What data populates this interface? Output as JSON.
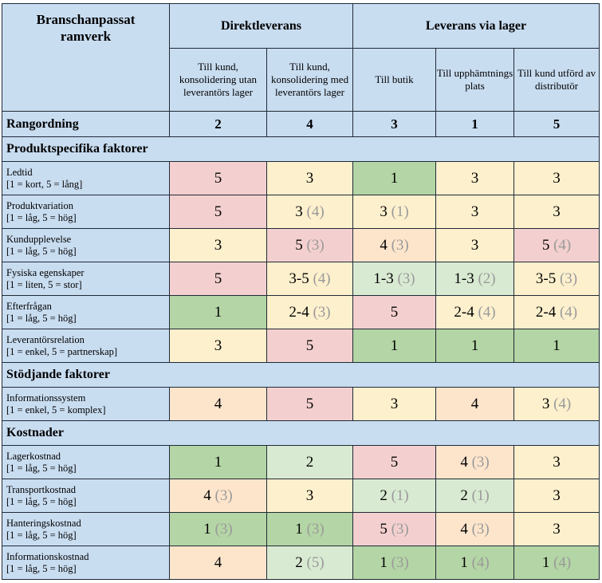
{
  "header": {
    "title": "Branschanpassat ramverk",
    "groups": [
      "Direktleverans",
      "Leverans via lager"
    ],
    "subheaders": [
      "Till kund, konsolidering utan leverantörs lager",
      "Till kund, konsolidering med leverantörs lager",
      "Till butik",
      "Till upphämtnings plats",
      "Till kund utförd av distributör"
    ]
  },
  "ranking": {
    "label": "Rangordning",
    "values": [
      "2",
      "4",
      "3",
      "1",
      "5"
    ]
  },
  "sections": [
    {
      "title": "Produktspecifika faktorer",
      "rows": [
        {
          "name": "Ledtid",
          "scale": "[1 = kort, 5 = lång]",
          "cells": [
            {
              "v": "5",
              "c": "red"
            },
            {
              "v": "3",
              "c": "yel"
            },
            {
              "v": "1",
              "c": "gD"
            },
            {
              "v": "3",
              "c": "yel"
            },
            {
              "v": "3",
              "c": "yel"
            }
          ]
        },
        {
          "name": "Produktvariation",
          "scale": "[1 = låg, 5 = hög]",
          "cells": [
            {
              "v": "5",
              "c": "red"
            },
            {
              "v": "3",
              "a": "(4)",
              "c": "yel"
            },
            {
              "v": "3",
              "a": "(1)",
              "c": "yel"
            },
            {
              "v": "3",
              "c": "yel"
            },
            {
              "v": "3",
              "c": "yel"
            }
          ]
        },
        {
          "name": "Kundupplevelse",
          "scale": "[1 = låg, 5 = hög]",
          "cells": [
            {
              "v": "3",
              "c": "yel"
            },
            {
              "v": "5",
              "a": "(3)",
              "c": "red"
            },
            {
              "v": "4",
              "a": "(3)",
              "c": "pch"
            },
            {
              "v": "3",
              "c": "yel"
            },
            {
              "v": "5",
              "a": "(4)",
              "c": "red"
            }
          ]
        },
        {
          "name": "Fysiska egenskaper",
          "scale": "[1 = liten, 5 = stor]",
          "cells": [
            {
              "v": "5",
              "c": "red"
            },
            {
              "v": "3-5",
              "a": "(4)",
              "c": "yel"
            },
            {
              "v": "1-3",
              "a": "(3)",
              "c": "gL"
            },
            {
              "v": "1-3",
              "a": "(2)",
              "c": "gL"
            },
            {
              "v": "3-5",
              "a": "(3)",
              "c": "yel"
            }
          ]
        },
        {
          "name": "Efterfrågan",
          "scale": "[1 = låg, 5 = hög]",
          "cells": [
            {
              "v": "1",
              "c": "gD"
            },
            {
              "v": "2-4",
              "a": "(3)",
              "c": "yel"
            },
            {
              "v": "5",
              "c": "red"
            },
            {
              "v": "2-4",
              "a": "(4)",
              "c": "yel"
            },
            {
              "v": "2-4",
              "a": "(4)",
              "c": "yel"
            }
          ]
        },
        {
          "name": "Leverantörsrelation",
          "scale": "[1 = enkel, 5 = partnerskap]",
          "cells": [
            {
              "v": "3",
              "c": "yel"
            },
            {
              "v": "5",
              "c": "red"
            },
            {
              "v": "1",
              "c": "gD"
            },
            {
              "v": "1",
              "c": "gD"
            },
            {
              "v": "1",
              "c": "gD"
            }
          ]
        }
      ]
    },
    {
      "title": "Stödjande faktorer",
      "rows": [
        {
          "name": "Informationssystem",
          "scale": "[1 = enkel, 5 = komplex]",
          "cells": [
            {
              "v": "4",
              "c": "pch"
            },
            {
              "v": "5",
              "c": "red"
            },
            {
              "v": "3",
              "c": "yel"
            },
            {
              "v": "4",
              "c": "pch"
            },
            {
              "v": "3",
              "a": "(4)",
              "c": "yel"
            }
          ]
        }
      ]
    },
    {
      "title": "Kostnader",
      "rows": [
        {
          "name": "Lagerkostnad",
          "scale": "[1 = låg, 5 = hög]",
          "cells": [
            {
              "v": "1",
              "c": "gD"
            },
            {
              "v": "2",
              "c": "gL"
            },
            {
              "v": "5",
              "c": "red"
            },
            {
              "v": "4",
              "a": "(3)",
              "c": "pch"
            },
            {
              "v": "3",
              "c": "yel"
            }
          ]
        },
        {
          "name": "Transportkostnad",
          "scale": "[1 = låg, 5 = hög]",
          "cells": [
            {
              "v": "4",
              "a": "(3)",
              "c": "pch"
            },
            {
              "v": "3",
              "c": "yel"
            },
            {
              "v": "2",
              "a": "(1)",
              "c": "gL"
            },
            {
              "v": "2",
              "a": "(1)",
              "c": "gL"
            },
            {
              "v": "3",
              "c": "yel"
            }
          ]
        },
        {
          "name": "Hanteringskostnad",
          "scale": "[1 = låg, 5 = hög]",
          "cells": [
            {
              "v": "1",
              "a": "(3)",
              "c": "gD"
            },
            {
              "v": "1",
              "a": "(3)",
              "c": "gD"
            },
            {
              "v": "5",
              "a": "(3)",
              "c": "red"
            },
            {
              "v": "4",
              "a": "(3)",
              "c": "pch"
            },
            {
              "v": "3",
              "c": "yel"
            }
          ]
        },
        {
          "name": "Informationskostnad",
          "scale": "[1 = låg, 5 = hög]",
          "cells": [
            {
              "v": "4",
              "c": "pch"
            },
            {
              "v": "2",
              "a": "(5)",
              "c": "gL"
            },
            {
              "v": "1",
              "a": "(3)",
              "c": "gD"
            },
            {
              "v": "1",
              "a": "(4)",
              "c": "gD"
            },
            {
              "v": "1",
              "a": "(4)",
              "c": "gD"
            }
          ]
        }
      ]
    }
  ]
}
